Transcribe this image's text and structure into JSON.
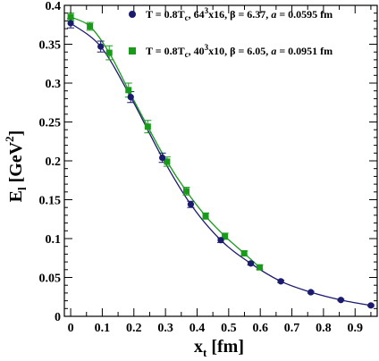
{
  "chart_data": {
    "type": "scatter",
    "xlabel": {
      "base": "x",
      "sub": "t",
      "rest": " [fm]"
    },
    "ylabel": {
      "base": "E",
      "sub": "l",
      "rest": " [GeV",
      "sup": "2",
      "end": "]"
    },
    "xlim": [
      -0.02,
      0.97
    ],
    "ylim": [
      0,
      0.4
    ],
    "xticks": [
      0,
      0.1,
      0.2,
      0.3,
      0.4,
      0.5,
      0.6,
      0.7,
      0.8,
      0.9
    ],
    "xtick_labels": [
      "0",
      "0.1",
      "0.2",
      "0.3",
      "0.4",
      "0.5",
      "0.6",
      "0.7",
      "0.8",
      "0.9"
    ],
    "yticks": [
      0,
      0.05,
      0.1,
      0.15,
      0.2,
      0.25,
      0.3,
      0.35,
      0.4
    ],
    "ytick_labels": [
      "0",
      "0.05",
      "0.1",
      "0.15",
      "0.2",
      "0.25",
      "0.3",
      "0.35",
      "0.4"
    ],
    "legend_position": "top-right",
    "grid": false,
    "series": [
      {
        "legend": {
          "prefix": "T = 0.8T",
          "c": "c",
          "mid1": ", 64",
          "sup": "3",
          "mid2": "x16, β = 6.37, ",
          "a": "a",
          "end": " = 0.0595 fm"
        },
        "color": "#1a1a6e",
        "marker": "circle",
        "x": [
          0,
          0.095,
          0.19,
          0.29,
          0.38,
          0.475,
          0.57,
          0.665,
          0.76,
          0.855,
          0.95
        ],
        "y": [
          0.377,
          0.347,
          0.282,
          0.204,
          0.144,
          0.098,
          0.068,
          0.045,
          0.031,
          0.021,
          0.014
        ],
        "err": [
          0.006,
          0.007,
          0.007,
          0.006,
          0.004,
          0.003,
          0.002,
          0.0015,
          0.0012,
          0.001,
          0.001
        ]
      },
      {
        "legend": {
          "prefix": "T = 0.8T",
          "c": "c",
          "mid1": ", 40",
          "sup": "3",
          "mid2": "x10, β = 6.05, ",
          "a": "a",
          "end": " = 0.0951 fm"
        },
        "color": "#1a9a1a",
        "marker": "square",
        "x": [
          0,
          0.061,
          0.122,
          0.183,
          0.244,
          0.305,
          0.366,
          0.427,
          0.488,
          0.549,
          0.598
        ],
        "y": [
          0.385,
          0.373,
          0.339,
          0.291,
          0.244,
          0.199,
          0.161,
          0.129,
          0.103,
          0.081,
          0.063
        ],
        "err": [
          0.005,
          0.005,
          0.009,
          0.009,
          0.008,
          0.006,
          0.005,
          0.004,
          0.004,
          0.003,
          0.003
        ]
      }
    ]
  }
}
